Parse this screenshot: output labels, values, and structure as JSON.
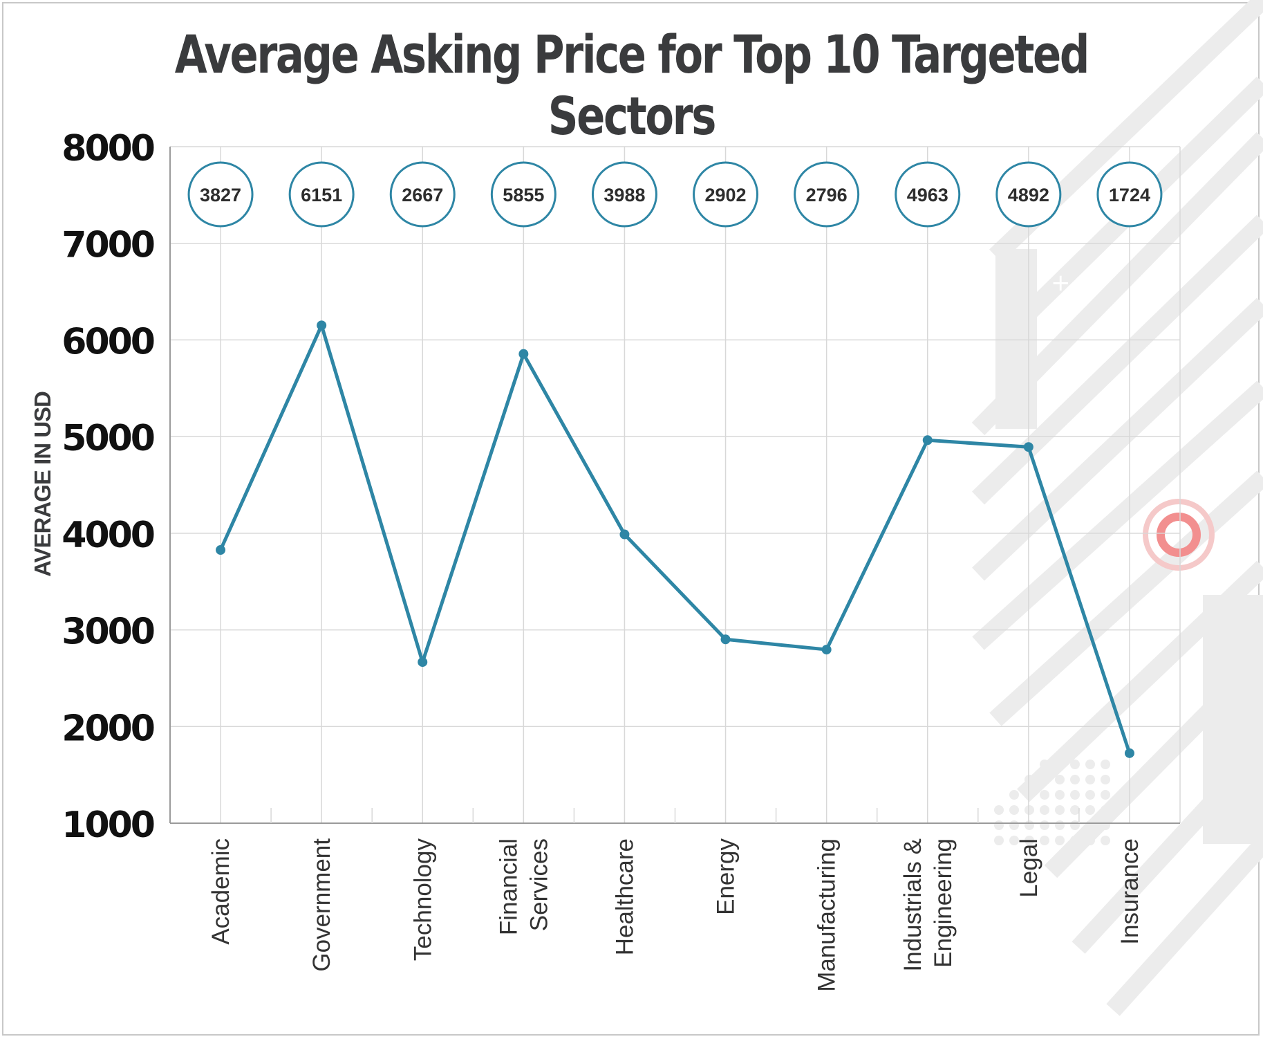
{
  "colors": {
    "line": "#2e86a5",
    "bubble_border": "#2e86a5",
    "grid": "#d8d8d8",
    "axis": "#9a9a9a",
    "decor": "#ececec",
    "decor_accent": "#f28f8f"
  },
  "chart_data": {
    "type": "line",
    "title": "Average Asking Price for Top 10 Targeted Sectors",
    "xlabel": "",
    "ylabel": "AVERAGE IN USD",
    "ylim": [
      1000,
      8000
    ],
    "yticks": [
      1000,
      2000,
      3000,
      4000,
      5000,
      6000,
      7000,
      8000
    ],
    "grid": true,
    "categories": [
      "Academic",
      "Government",
      "Technology",
      "Financial Services",
      "Healthcare",
      "Energy",
      "Manufacturing",
      "Industrials & Engineering",
      "Legal",
      "Insurance"
    ],
    "category_lines": [
      [
        "Academic"
      ],
      [
        "Government"
      ],
      [
        "Technology"
      ],
      [
        "Financial",
        "Services"
      ],
      [
        "Healthcare"
      ],
      [
        "Energy"
      ],
      [
        "Manufacturing"
      ],
      [
        "Industrials &",
        "Engineering"
      ],
      [
        "Legal"
      ],
      [
        "Insurance"
      ]
    ],
    "series": [
      {
        "values": [
          3827,
          6151,
          2667,
          5855,
          3988,
          2902,
          2796,
          4963,
          4892,
          1724
        ]
      }
    ],
    "data_labels": [
      "3827",
      "6151",
      "2667",
      "5855",
      "3988",
      "2902",
      "2796",
      "4963",
      "4892",
      "1724"
    ]
  }
}
